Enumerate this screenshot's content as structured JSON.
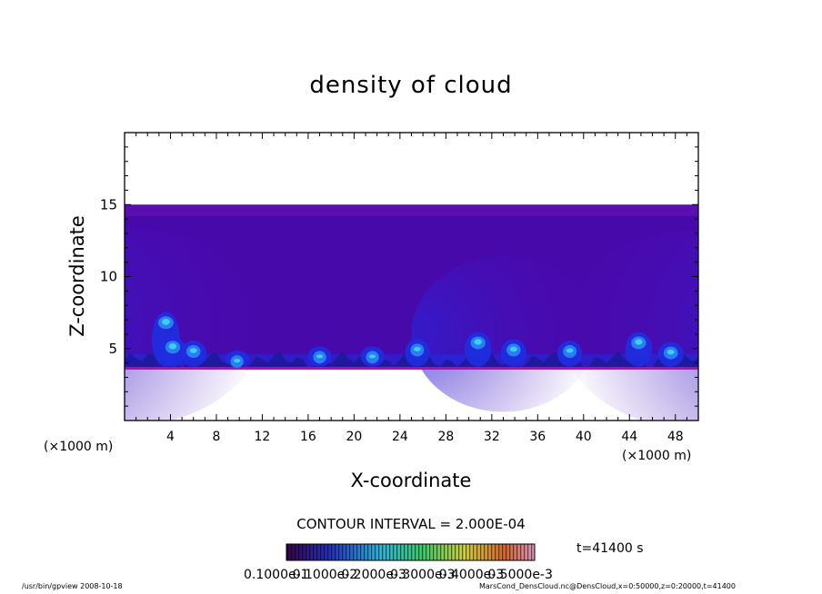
{
  "chart_data": {
    "type": "heatmap",
    "title": "density of cloud",
    "xlabel": "X-coordinate",
    "ylabel": "Z-coordinate",
    "x_unit_left": "(×1000 m)",
    "x_unit_right": "(×1000 m)",
    "xlim": [
      0,
      50
    ],
    "ylim": [
      0,
      20
    ],
    "x_ticks": [
      4,
      8,
      12,
      16,
      20,
      24,
      28,
      32,
      36,
      40,
      44,
      48
    ],
    "y_ticks": [
      5,
      10,
      15
    ],
    "cloud_layer_z": [
      3.6,
      15
    ],
    "cloud_columns": [
      {
        "x": 3.6,
        "z_top": 7.3,
        "peak": 0.9
      },
      {
        "x": 4.2,
        "z_top": 5.6,
        "peak": 0.8
      },
      {
        "x": 6.0,
        "z_top": 5.3,
        "peak": 0.7
      },
      {
        "x": 9.8,
        "z_top": 4.6,
        "peak": 0.5
      },
      {
        "x": 17.0,
        "z_top": 4.9,
        "peak": 0.5
      },
      {
        "x": 21.6,
        "z_top": 4.9,
        "peak": 0.5
      },
      {
        "x": 25.5,
        "z_top": 5.4,
        "peak": 0.6
      },
      {
        "x": 30.8,
        "z_top": 5.9,
        "peak": 0.8
      },
      {
        "x": 33.9,
        "z_top": 5.4,
        "peak": 0.7
      },
      {
        "x": 38.8,
        "z_top": 5.3,
        "peak": 0.6
      },
      {
        "x": 44.8,
        "z_top": 5.9,
        "peak": 0.8
      },
      {
        "x": 47.6,
        "z_top": 5.2,
        "peak": 0.7
      }
    ],
    "contour_interval_label": "CONTOUR INTERVAL = 2.000E-04",
    "time_label": "t=41400 s",
    "colorbar_labels": [
      "0.1000e-1",
      "0.1000e-2",
      "0.2000e-3",
      "0.3000e-3",
      "0.4000e-3",
      "0.5000e-3"
    ],
    "colors": {
      "background_layer": "#5a0fb0",
      "low": "#3a06a8",
      "mid": "#1e2ee0",
      "high": "#38d0f0"
    }
  },
  "footer": {
    "left": "/usr/bin/gpview   2008-10-18",
    "right": "MarsCond_DensCloud.nc@DensCloud,x=0:50000,z=0:20000,t=41400"
  }
}
